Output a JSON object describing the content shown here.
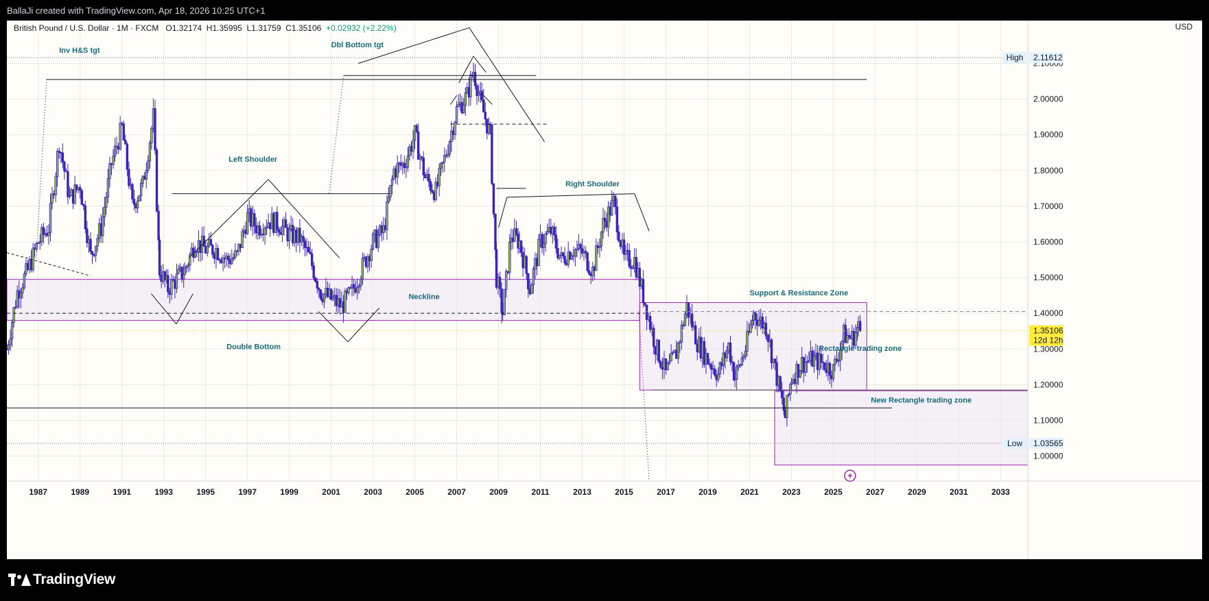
{
  "header": {
    "attribution": "BallaJi created with TradingView.com, Apr 18, 2026 10:25 UTC+1"
  },
  "legend": {
    "symbol": "British Pound / U.S. Dollar · 1M · FXCM",
    "open": "O1.32174",
    "high": "H1.35995",
    "low": "L1.31759",
    "close": "C1.35106",
    "change": "+0.02932 (+2.22%)"
  },
  "axis": {
    "currency": "USD"
  },
  "footer": {
    "brand": "TradingView"
  },
  "colors": {
    "background": "#fffdf7",
    "candle_body": "#3c22b8",
    "candle_up": "#8bc34a",
    "zone_stroke": "#9c27b0",
    "zone_fill": "#ede4f5",
    "annotation_text": "#1a6a7a",
    "last_price_bg": "#ffeb3b"
  },
  "chart_data": {
    "type": "candlestick",
    "title": "British Pound / U.S. Dollar · 1M · FXCM",
    "x_ticks": [
      "1987",
      "1989",
      "1991",
      "1993",
      "1995",
      "1997",
      "1999",
      "2001",
      "2003",
      "2005",
      "2007",
      "2009",
      "2011",
      "2013",
      "2015",
      "2017",
      "2019",
      "2021",
      "2023",
      "2025",
      "2027",
      "2029",
      "2031",
      "2033"
    ],
    "y_ticks": [
      "1.00000",
      "1.10000",
      "1.20000",
      "1.30000",
      "1.40000",
      "1.50000",
      "1.60000",
      "1.70000",
      "1.80000",
      "1.90000",
      "2.00000",
      "2.10000"
    ],
    "xlim": [
      1985.5,
      2034.3
    ],
    "ylim": [
      0.93,
      2.22
    ],
    "price_labels": {
      "high_label": "High",
      "high_value": "2.11612",
      "high": 2.11612,
      "low_label": "Low",
      "low_value": "1.03565",
      "low": 1.03565,
      "last_value": "1.35106",
      "last": 1.35106,
      "countdown": "12d 12h"
    },
    "series": [
      {
        "points": [
          [
            1985.5,
            1.3
          ],
          [
            1986.0,
            1.46
          ],
          [
            1986.5,
            1.52
          ],
          [
            1987.0,
            1.6
          ],
          [
            1987.5,
            1.64
          ],
          [
            1988.0,
            1.88
          ],
          [
            1988.5,
            1.72
          ],
          [
            1989.0,
            1.76
          ],
          [
            1989.5,
            1.56
          ],
          [
            1990.0,
            1.64
          ],
          [
            1990.5,
            1.82
          ],
          [
            1991.0,
            1.92
          ],
          [
            1991.5,
            1.7
          ],
          [
            1992.0,
            1.76
          ],
          [
            1992.5,
            1.95
          ],
          [
            1992.8,
            1.52
          ],
          [
            1993.2,
            1.47
          ],
          [
            1994.0,
            1.52
          ],
          [
            1994.5,
            1.6
          ],
          [
            1995.0,
            1.58
          ],
          [
            1995.5,
            1.58
          ],
          [
            1996.0,
            1.55
          ],
          [
            1996.5,
            1.56
          ],
          [
            1997.0,
            1.67
          ],
          [
            1997.5,
            1.64
          ],
          [
            1998.0,
            1.66
          ],
          [
            1998.5,
            1.65
          ],
          [
            1999.0,
            1.62
          ],
          [
            1999.5,
            1.61
          ],
          [
            2000.0,
            1.55
          ],
          [
            2000.5,
            1.46
          ],
          [
            2001.0,
            1.44
          ],
          [
            2001.5,
            1.42
          ],
          [
            2002.0,
            1.46
          ],
          [
            2002.5,
            1.53
          ],
          [
            2003.0,
            1.6
          ],
          [
            2003.5,
            1.63
          ],
          [
            2004.0,
            1.8
          ],
          [
            2004.5,
            1.82
          ],
          [
            2005.0,
            1.9
          ],
          [
            2005.5,
            1.78
          ],
          [
            2006.0,
            1.74
          ],
          [
            2006.5,
            1.85
          ],
          [
            2007.0,
            1.97
          ],
          [
            2007.5,
            2.01
          ],
          [
            2007.8,
            2.08
          ],
          [
            2008.2,
            1.98
          ],
          [
            2008.6,
            1.9
          ],
          [
            2008.9,
            1.5
          ],
          [
            2009.2,
            1.4
          ],
          [
            2009.6,
            1.62
          ],
          [
            2010.0,
            1.6
          ],
          [
            2010.5,
            1.47
          ],
          [
            2011.0,
            1.6
          ],
          [
            2011.5,
            1.63
          ],
          [
            2012.0,
            1.55
          ],
          [
            2012.5,
            1.58
          ],
          [
            2013.0,
            1.57
          ],
          [
            2013.5,
            1.52
          ],
          [
            2014.0,
            1.65
          ],
          [
            2014.5,
            1.71
          ],
          [
            2015.0,
            1.55
          ],
          [
            2015.5,
            1.55
          ],
          [
            2016.0,
            1.43
          ],
          [
            2016.5,
            1.31
          ],
          [
            2017.0,
            1.23
          ],
          [
            2017.5,
            1.29
          ],
          [
            2018.0,
            1.42
          ],
          [
            2018.5,
            1.32
          ],
          [
            2019.0,
            1.27
          ],
          [
            2019.5,
            1.23
          ],
          [
            2020.0,
            1.31
          ],
          [
            2020.3,
            1.22
          ],
          [
            2020.8,
            1.3
          ],
          [
            2021.2,
            1.4
          ],
          [
            2021.8,
            1.36
          ],
          [
            2022.3,
            1.22
          ],
          [
            2022.7,
            1.11
          ],
          [
            2023.0,
            1.22
          ],
          [
            2023.5,
            1.26
          ],
          [
            2024.0,
            1.27
          ],
          [
            2024.5,
            1.26
          ],
          [
            2025.0,
            1.24
          ],
          [
            2025.5,
            1.34
          ],
          [
            2025.9,
            1.33
          ],
          [
            2026.2,
            1.36
          ],
          [
            2026.3,
            1.35
          ]
        ]
      }
    ],
    "zones": [
      {
        "from": 1985.5,
        "to": 2015.75,
        "low": 1.38,
        "high": 1.495
      },
      {
        "from": 2015.75,
        "to": 2026.6,
        "low": 1.185,
        "high": 1.43
      },
      {
        "from": 2022.2,
        "to": 2034.3,
        "low": 0.975,
        "high": 1.183
      }
    ],
    "annotations": [
      "Inv H&S tgt",
      "Dbl Bottom tgt",
      "Left Shoulder",
      "Right Shoulder",
      "Neckline",
      "Double Bottom",
      "Support & Resistance Zone",
      "Rectangle trading zone",
      "New Rectangle trading zone"
    ]
  }
}
